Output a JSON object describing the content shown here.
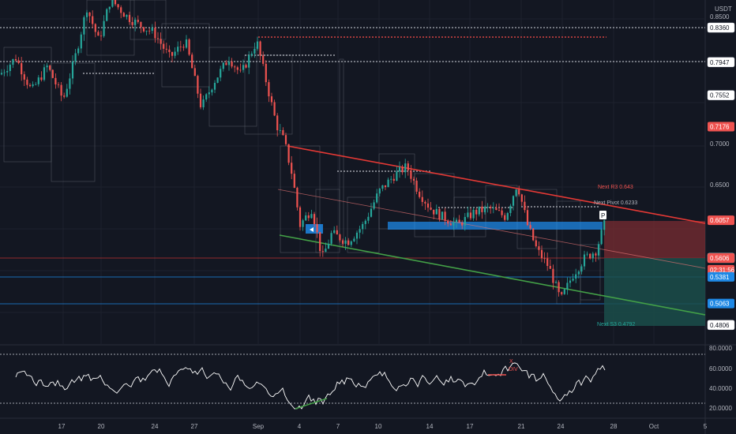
{
  "price_axis": {
    "currency": "USDT",
    "ticks": [
      "0.8500",
      "0.7000",
      "0.6500"
    ],
    "range": [
      0.42,
      0.88
    ]
  },
  "price_tags": [
    {
      "label": "0.8360",
      "style": "dark",
      "price": 0.836
    },
    {
      "label": "0.7947",
      "style": "dark",
      "price": 0.7947
    },
    {
      "label": "0.7552",
      "style": "dark",
      "price": 0.7552
    },
    {
      "label": "0.7176",
      "style": "red",
      "price": 0.7176
    },
    {
      "label": "0.6057",
      "style": "red",
      "price": 0.6057
    },
    {
      "label": "0.5607",
      "style": "dark",
      "price": 0.5607
    },
    {
      "label": "0.5606",
      "style": "red",
      "price": 0.5606
    },
    {
      "label": "02:31:56",
      "style": "red",
      "price": 0.5466
    },
    {
      "label": "0.5381",
      "style": "blue",
      "price": 0.5381
    },
    {
      "label": "0.5063",
      "style": "blue",
      "price": 0.5063
    },
    {
      "label": "0.4806",
      "style": "dark",
      "price": 0.4806
    }
  ],
  "annotations": {
    "next_r3": "Next R3 0.643",
    "next_pivot": "Next Pivot 0.6233",
    "next_s3": "Next S3 0.4792",
    "pivot_marker": "P",
    "rsi_marker": "DIV",
    "rsi_cross": "X"
  },
  "rsi_axis": {
    "ticks": [
      "80.0000",
      "60.0000",
      "40.0000",
      "20.0000"
    ],
    "range": [
      15,
      90
    ]
  },
  "time_axis": {
    "labels": [
      "17",
      "20",
      "24",
      "27",
      "Sep",
      "4",
      "7",
      "10",
      "14",
      "17",
      "21",
      "24",
      "28",
      "Oct",
      "5"
    ]
  },
  "colors": {
    "background": "#131722",
    "candle_up": "#26a69a",
    "candle_down": "#ef5350",
    "resistance_line": "#e53935",
    "support_line": "#43a047",
    "zone_blue": "#1e88e5",
    "short_stop": "#7a2c31",
    "short_target": "#1b4d4a",
    "rsi_line": "#ffffff"
  }
}
